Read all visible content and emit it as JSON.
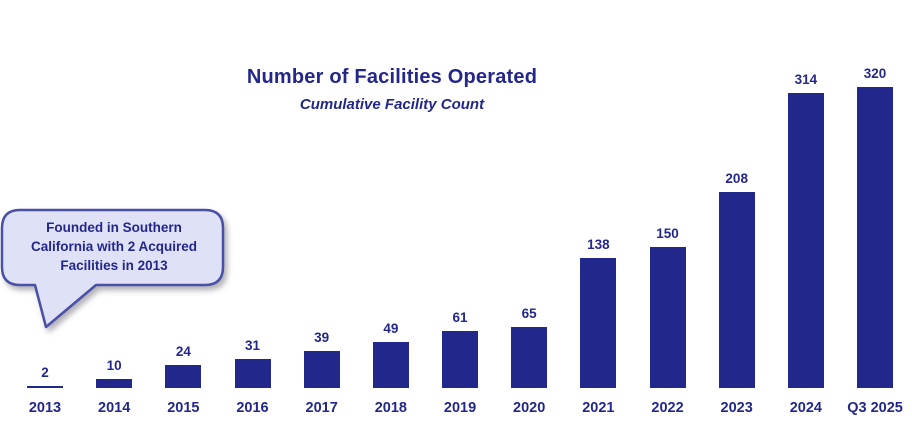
{
  "chart_data": {
    "type": "bar",
    "title": "Number of Facilities Operated",
    "subtitle": "Cumulative Facility Count",
    "categories": [
      "2013",
      "2014",
      "2015",
      "2016",
      "2017",
      "2018",
      "2019",
      "2020",
      "2021",
      "2022",
      "2023",
      "2024",
      "Q3 2025"
    ],
    "values": [
      2,
      10,
      24,
      31,
      39,
      49,
      61,
      65,
      138,
      150,
      208,
      314,
      320
    ],
    "xlabel": "",
    "ylabel": "",
    "ylim": [
      0,
      320
    ],
    "grid": false,
    "legend": "none",
    "bar_labels_shown": true
  },
  "colors": {
    "bar": "#22278C",
    "text": "#23278C",
    "callout_fill": "#DFE1F7",
    "callout_border": "#4A50A5",
    "background": "#FFFFFF"
  },
  "callout": {
    "lines": [
      "Founded in Southern",
      "California with 2 Acquired",
      "Facilities in 2013"
    ],
    "full_text": "Founded in Southern California with 2 Acquired Facilities in 2013",
    "points_to": "2013"
  }
}
